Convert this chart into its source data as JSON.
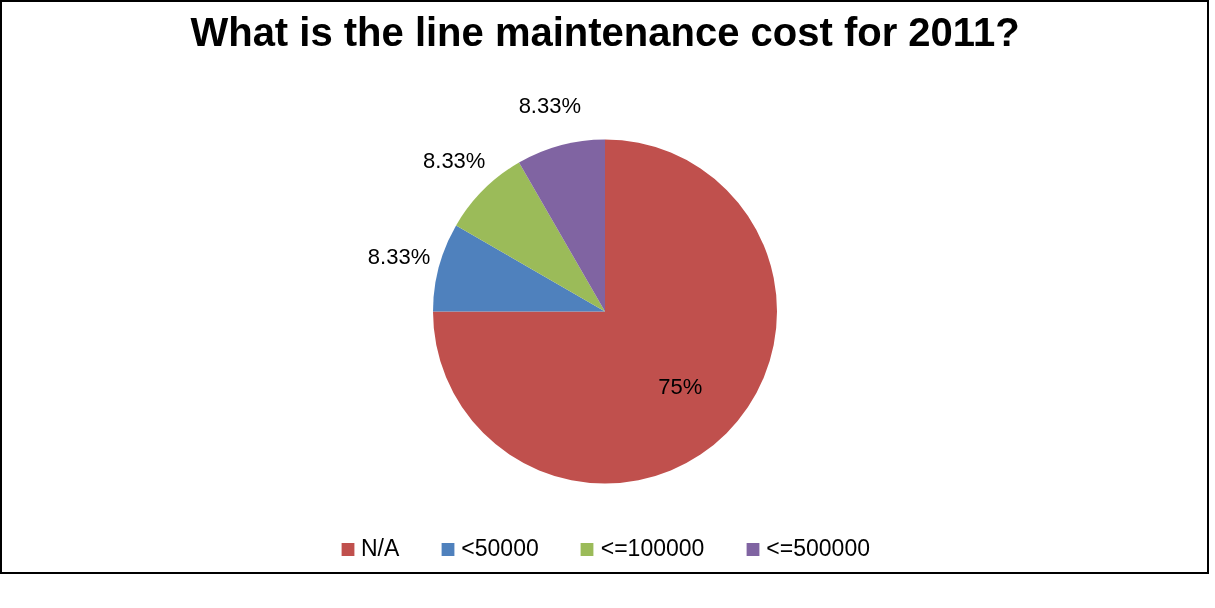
{
  "chart_data": {
    "type": "pie",
    "title": "What is the line maintenance cost for 2011?",
    "categories": [
      "N/A",
      "<50000",
      "<=100000",
      "<=500000"
    ],
    "values": [
      75,
      8.33,
      8.33,
      8.33
    ],
    "colors": [
      "#c0504d",
      "#4f81bd",
      "#9bbb59",
      "#8064a2"
    ],
    "value_labels": [
      "75%",
      "8.33%",
      "8.33%",
      "8.33%"
    ],
    "legend": "bottom"
  }
}
